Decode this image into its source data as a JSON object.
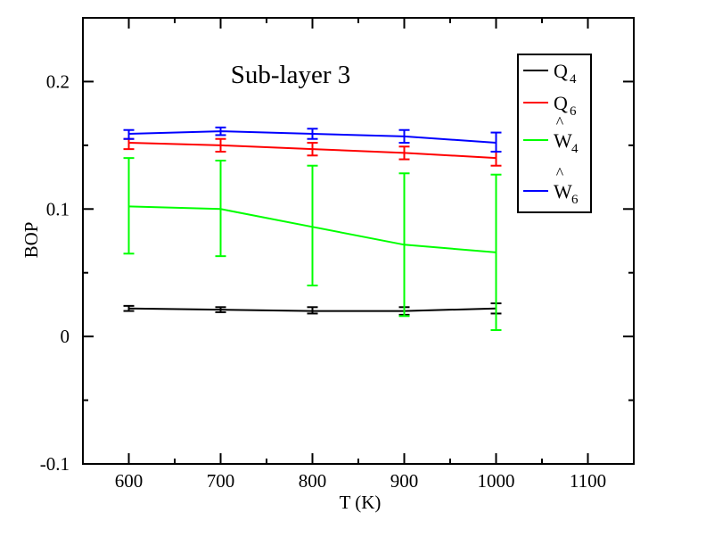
{
  "chart_data": {
    "type": "line",
    "title": "",
    "annotation": "Sub-layer 3",
    "xlabel": "T (K)",
    "ylabel": "BOP",
    "xlim": [
      550,
      1150
    ],
    "ylim": [
      -0.1,
      0.25
    ],
    "xticks": [
      600,
      700,
      800,
      900,
      1000,
      1100
    ],
    "xtick_labels": [
      "600",
      "700",
      "800",
      "900",
      "1000",
      "1100"
    ],
    "yticks": [
      -0.1,
      0,
      0.1,
      0.2
    ],
    "ytick_labels": [
      "-0.1",
      "0",
      "0.1",
      "0.2"
    ],
    "grid": false,
    "legend_position": "top-right",
    "x": [
      600,
      700,
      800,
      900,
      1000
    ],
    "series": [
      {
        "name": "Q4",
        "label_main": "Q",
        "label_sub": "4",
        "hat": false,
        "color": "#000000",
        "values": [
          0.022,
          0.021,
          0.02,
          0.02,
          0.022
        ],
        "err_low": [
          0.02,
          0.019,
          0.018,
          0.017,
          0.018
        ],
        "err_high": [
          0.024,
          0.023,
          0.023,
          0.023,
          0.026
        ]
      },
      {
        "name": "Q6",
        "label_main": "Q",
        "label_sub": "6",
        "hat": false,
        "color": "#ff0000",
        "values": [
          0.152,
          0.15,
          0.147,
          0.144,
          0.14
        ],
        "err_low": [
          0.147,
          0.145,
          0.142,
          0.139,
          0.134
        ],
        "err_high": [
          0.155,
          0.155,
          0.152,
          0.149,
          0.145
        ]
      },
      {
        "name": "W4",
        "label_main": "W",
        "label_sub": "4",
        "hat": true,
        "color": "#00ff00",
        "values": [
          0.102,
          0.1,
          0.086,
          0.072,
          0.066
        ],
        "err_low": [
          0.065,
          0.063,
          0.04,
          0.016,
          0.005
        ],
        "err_high": [
          0.14,
          0.138,
          0.134,
          0.128,
          0.127
        ]
      },
      {
        "name": "W6",
        "label_main": "W",
        "label_sub": "6",
        "hat": true,
        "color": "#0000ff",
        "values": [
          0.159,
          0.161,
          0.159,
          0.157,
          0.152
        ],
        "err_low": [
          0.155,
          0.158,
          0.155,
          0.152,
          0.145
        ],
        "err_high": [
          0.162,
          0.164,
          0.163,
          0.162,
          0.16
        ]
      }
    ]
  }
}
